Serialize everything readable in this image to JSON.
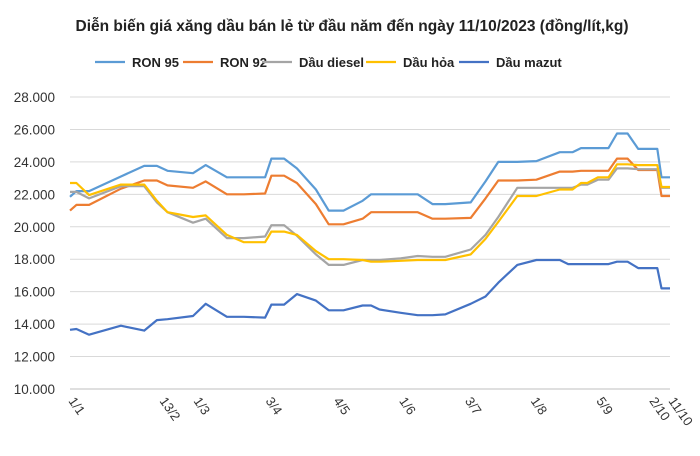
{
  "chart_data": {
    "type": "line",
    "title": "Diễn biến giá xăng dầu bán lẻ từ đầu năm đến ngày 11/10/2023 (đồng/lít,kg)",
    "xlabel": "",
    "ylabel": "",
    "ylim": [
      10000,
      28000
    ],
    "ytick_values": [
      10000,
      12000,
      14000,
      16000,
      18000,
      20000,
      22000,
      24000,
      26000,
      28000
    ],
    "ytick_labels": [
      "10.000",
      "12.000",
      "14.000",
      "16.000",
      "18.000",
      "20.000",
      "22.000",
      "24.000",
      "26.000",
      "28.000"
    ],
    "x_range": [
      1,
      284
    ],
    "xtick_values": [
      1,
      44,
      60,
      94,
      126,
      157,
      188,
      219,
      250,
      275,
      284
    ],
    "xtick_labels": [
      "1/1",
      "13/2",
      "1/3",
      "3/4",
      "4/5",
      "1/6",
      "3/7",
      "1/8",
      "5/9",
      "2/10",
      "11/10"
    ],
    "grid": true,
    "legend_position": "top",
    "series": [
      {
        "name": "RON 95",
        "color": "#5b9bd5",
        "x": [
          1,
          4,
          10,
          25,
          36,
          42,
          47,
          59,
          65,
          75,
          83,
          93,
          96,
          102,
          108,
          117,
          123,
          130,
          139,
          143,
          147,
          157,
          165,
          172,
          178,
          190,
          197,
          203,
          212,
          221,
          232,
          236,
          238,
          242,
          245,
          250,
          255,
          259,
          264,
          269,
          275,
          278,
          280,
          284
        ],
        "y": [
          21850,
          22200,
          22200,
          23100,
          23750,
          23750,
          23450,
          23300,
          23800,
          23050,
          23050,
          23050,
          24200,
          24200,
          23600,
          22300,
          21000,
          21000,
          21600,
          22000,
          22000,
          22000,
          22000,
          21400,
          21400,
          21500,
          22800,
          24000,
          24000,
          24050,
          24600,
          24600,
          24600,
          24850,
          24850,
          24850,
          24850,
          25750,
          25750,
          24800,
          24800,
          24800,
          23050,
          23050
        ],
        "values": [
          21850,
          22200,
          22200,
          23100,
          23750,
          23750,
          23450,
          23300,
          23800,
          23050,
          23050,
          23050,
          24200,
          24200,
          23600,
          22300,
          21000,
          21000,
          21600,
          22000,
          22000,
          22000,
          22000,
          21400,
          21400,
          21500,
          22800,
          24000,
          24000,
          24050,
          24600,
          24600,
          24600,
          24850,
          24850,
          24850,
          24850,
          25750,
          25750,
          24800,
          24800,
          24800,
          23050,
          23050
        ]
      },
      {
        "name": "RON 92",
        "color": "#ed7d31",
        "x": [
          1,
          4,
          10,
          25,
          36,
          42,
          47,
          59,
          65,
          75,
          83,
          93,
          96,
          102,
          108,
          117,
          123,
          130,
          139,
          143,
          147,
          157,
          165,
          172,
          178,
          190,
          197,
          203,
          212,
          221,
          232,
          236,
          238,
          242,
          245,
          250,
          255,
          259,
          264,
          269,
          275,
          278,
          280,
          284
        ],
        "y": [
          21000,
          21350,
          21350,
          22350,
          22850,
          22850,
          22550,
          22400,
          22800,
          22000,
          22000,
          22050,
          23150,
          23150,
          22700,
          21400,
          20150,
          20150,
          20500,
          20900,
          20900,
          20900,
          20900,
          20500,
          20500,
          20550,
          21750,
          22850,
          22850,
          22900,
          23400,
          23400,
          23400,
          23450,
          23450,
          23450,
          23450,
          24200,
          24200,
          23500,
          23500,
          23500,
          21900,
          21900
        ],
        "values": [
          21000,
          21350,
          21350,
          22350,
          22850,
          22850,
          22550,
          22400,
          22800,
          22000,
          22000,
          22050,
          23150,
          23150,
          22700,
          21400,
          20150,
          20150,
          20500,
          20900,
          20900,
          20900,
          20900,
          20500,
          20500,
          20550,
          21750,
          22850,
          22850,
          22900,
          23400,
          23400,
          23400,
          23450,
          23450,
          23450,
          23450,
          24200,
          24200,
          23500,
          23500,
          23500,
          21900,
          21900
        ]
      },
      {
        "name": "Dầu diesel",
        "color": "#a5a5a5",
        "x": [
          1,
          4,
          10,
          25,
          36,
          42,
          47,
          59,
          65,
          75,
          83,
          93,
          96,
          102,
          108,
          117,
          123,
          130,
          139,
          143,
          147,
          157,
          165,
          172,
          178,
          190,
          197,
          203,
          212,
          221,
          232,
          236,
          238,
          242,
          245,
          250,
          255,
          259,
          264,
          269,
          275,
          278,
          280,
          284
        ],
        "y": [
          22150,
          22150,
          21750,
          22500,
          22500,
          21500,
          20900,
          20250,
          20500,
          19300,
          19300,
          19400,
          20100,
          20100,
          19450,
          18300,
          17650,
          17650,
          17950,
          17950,
          17950,
          18050,
          18200,
          18150,
          18150,
          18600,
          19500,
          20600,
          22400,
          22400,
          22400,
          22400,
          22400,
          22600,
          22600,
          22900,
          22900,
          23600,
          23600,
          23550,
          23550,
          23550,
          22400,
          22400
        ],
        "values": [
          22150,
          22150,
          21750,
          22500,
          22500,
          21500,
          20900,
          20250,
          20500,
          19300,
          19300,
          19400,
          20100,
          20100,
          19450,
          18300,
          17650,
          17650,
          17950,
          17950,
          17950,
          18050,
          18200,
          18150,
          18150,
          18600,
          19500,
          20600,
          22400,
          22400,
          22400,
          22400,
          22400,
          22600,
          22600,
          22900,
          22900,
          23600,
          23600,
          23550,
          23550,
          23550,
          22400,
          22400
        ]
      },
      {
        "name": "Dầu hỏa",
        "color": "#ffc000",
        "x": [
          1,
          4,
          10,
          25,
          36,
          42,
          47,
          59,
          65,
          75,
          83,
          93,
          96,
          102,
          108,
          117,
          123,
          130,
          139,
          143,
          147,
          157,
          165,
          172,
          178,
          190,
          197,
          203,
          212,
          221,
          232,
          236,
          238,
          242,
          245,
          250,
          255,
          259,
          264,
          269,
          275,
          278,
          280,
          284
        ],
        "y": [
          22700,
          22700,
          21950,
          22600,
          22600,
          21600,
          20900,
          20600,
          20700,
          19500,
          19050,
          19050,
          19700,
          19700,
          19500,
          18500,
          18000,
          18000,
          17950,
          17850,
          17850,
          17900,
          17950,
          17950,
          17950,
          18300,
          19250,
          20300,
          21900,
          21900,
          22300,
          22300,
          22300,
          22700,
          22700,
          23050,
          23050,
          23850,
          23850,
          23800,
          23800,
          23800,
          22450,
          22450
        ],
        "values": [
          22700,
          22700,
          21950,
          22600,
          22600,
          21600,
          20900,
          20600,
          20700,
          19500,
          19050,
          19050,
          19700,
          19700,
          19500,
          18500,
          18000,
          18000,
          17950,
          17850,
          17850,
          17900,
          17950,
          17950,
          17950,
          18300,
          19250,
          20300,
          21900,
          21900,
          22300,
          22300,
          22300,
          22700,
          22700,
          23050,
          23050,
          23850,
          23850,
          23800,
          23800,
          23800,
          22450,
          22450
        ]
      },
      {
        "name": "Dầu mazut",
        "color": "#4472c4",
        "x": [
          1,
          4,
          10,
          25,
          36,
          42,
          47,
          59,
          65,
          75,
          83,
          93,
          96,
          102,
          108,
          117,
          123,
          130,
          139,
          143,
          147,
          157,
          165,
          172,
          178,
          190,
          197,
          203,
          212,
          221,
          232,
          236,
          238,
          242,
          245,
          250,
          255,
          259,
          264,
          269,
          275,
          278,
          280,
          284
        ],
        "y": [
          13650,
          13700,
          13350,
          13900,
          13600,
          14250,
          14300,
          14500,
          15250,
          14450,
          14450,
          14400,
          15200,
          15200,
          15850,
          15450,
          14850,
          14850,
          15150,
          15150,
          14900,
          14700,
          14550,
          14550,
          14600,
          15250,
          15700,
          16550,
          17650,
          17950,
          17950,
          17700,
          17700,
          17700,
          17700,
          17700,
          17700,
          17850,
          17850,
          17450,
          17450,
          17450,
          16200,
          16200
        ],
        "values": [
          13650,
          13700,
          13350,
          13900,
          13600,
          14250,
          14300,
          14500,
          15250,
          14450,
          14450,
          14400,
          15200,
          15200,
          15850,
          15450,
          14850,
          14850,
          15150,
          15150,
          14900,
          14700,
          14550,
          14550,
          14600,
          15250,
          15700,
          16550,
          17650,
          17950,
          17950,
          17700,
          17700,
          17700,
          17700,
          17700,
          17700,
          17850,
          17850,
          17450,
          17450,
          17450,
          16200,
          16200
        ]
      }
    ]
  }
}
